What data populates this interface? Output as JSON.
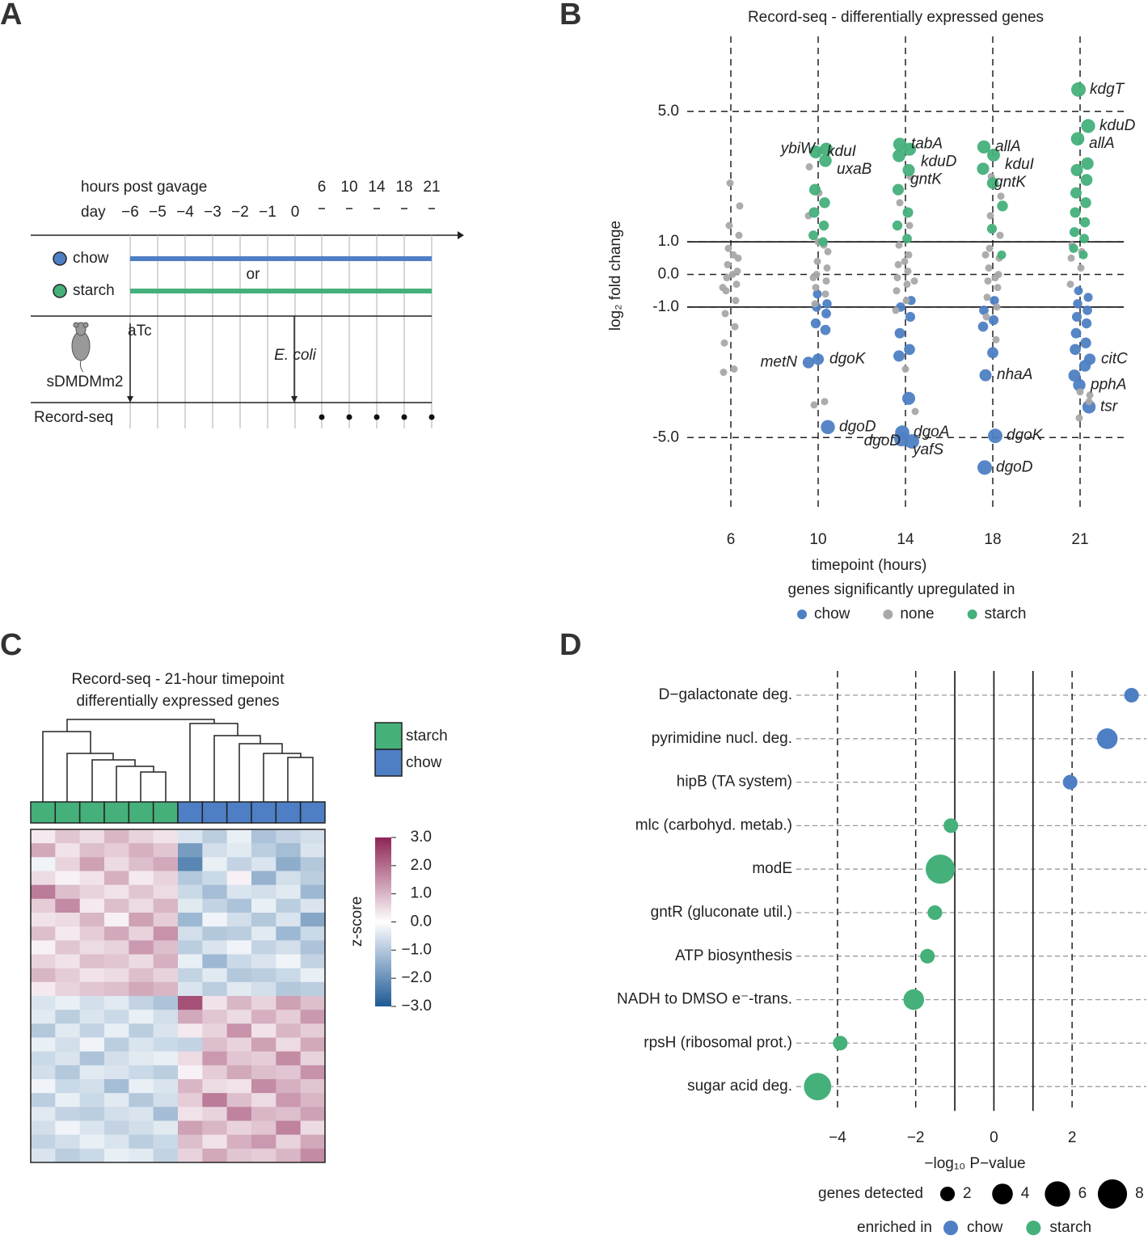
{
  "panel_labels": [
    "A",
    "B",
    "C",
    "D"
  ],
  "diagram": {
    "hours_label": "hours post gavage",
    "hours": [
      "6",
      "10",
      "14",
      "18",
      "21"
    ],
    "day_label": "day",
    "days": [
      "−6",
      "−5",
      "−4",
      "−3",
      "−2",
      "−1",
      "0"
    ],
    "diets": [
      {
        "name": "chow",
        "color": "#4e7fc4"
      },
      {
        "name": "starch",
        "color": "#45b07a"
      }
    ],
    "or": "or",
    "atc": "aTc",
    "ecoli": "E. coli",
    "mouse": "sDMDMm2",
    "readout": "Record-seq"
  },
  "chart_data": [
    {
      "type": "strip",
      "title": "Record-seq - differentially expressed genes",
      "x_label": "timepoint (hours)",
      "y_label": "log₂ fold change",
      "categories": [
        "6",
        "10",
        "14",
        "18",
        "21"
      ],
      "ylim": [
        -7.2,
        7.3
      ],
      "yticks": [
        {
          "value": 5,
          "label": "5.0"
        },
        {
          "value": 1,
          "label": "1.0"
        },
        {
          "value": 0,
          "label": "0.0"
        },
        {
          "value": -1,
          "label": "-1.0"
        },
        {
          "value": -5,
          "label": "-5.0"
        }
      ],
      "thresholds": [
        1,
        -1
      ],
      "legend_title": "genes significantly upregulated in",
      "series": [
        {
          "name": "chow",
          "color": "#4e7fc4",
          "x": [
            "10",
            "10",
            "10",
            "10",
            "10",
            "10",
            "10",
            "10",
            "10",
            "14",
            "14",
            "14",
            "14",
            "14",
            "14",
            "14",
            "14",
            "14",
            "14",
            "18",
            "18",
            "18",
            "18",
            "18",
            "18",
            "18",
            "18",
            "21",
            "21",
            "21",
            "21",
            "21",
            "21",
            "21",
            "21",
            "21",
            "21",
            "21",
            "21",
            "21",
            "21"
          ],
          "values": [
            -2.7,
            -2.6,
            -4.68,
            -0.6,
            -0.9,
            -1.0,
            -1.2,
            -1.5,
            -1.7,
            -4.85,
            -5.12,
            -5.05,
            -0.8,
            -1.0,
            -1.3,
            -1.8,
            -2.3,
            -2.5,
            -3.8,
            -3.09,
            -4.95,
            -5.92,
            -0.8,
            -1.1,
            -1.4,
            -1.6,
            -2.4,
            -2.6,
            -3.39,
            -4.06,
            -0.5,
            -0.7,
            -0.9,
            -1.1,
            -1.3,
            -1.5,
            -1.8,
            -2.1,
            -2.3,
            -2.8,
            -3.1
          ]
        },
        {
          "name": "none",
          "color": "#a8a8a8",
          "x": [
            "6",
            "6",
            "6",
            "6",
            "6",
            "6",
            "6",
            "6",
            "6",
            "6",
            "6",
            "6",
            "6",
            "6",
            "6",
            "6",
            "6",
            "6",
            "6",
            "6",
            "10",
            "10",
            "10",
            "10",
            "10",
            "10",
            "10",
            "10",
            "10",
            "10",
            "10",
            "10",
            "10",
            "10",
            "10",
            "10",
            "14",
            "14",
            "14",
            "14",
            "14",
            "14",
            "14",
            "14",
            "14",
            "14",
            "14",
            "14",
            "14",
            "14",
            "14",
            "14",
            "18",
            "18",
            "18",
            "18",
            "18",
            "18",
            "18",
            "18",
            "18",
            "18",
            "18",
            "18",
            "18",
            "18",
            "18",
            "18",
            "21",
            "21",
            "21",
            "21",
            "21",
            "21",
            "21",
            "21",
            "21"
          ],
          "values": [
            2.8,
            2.1,
            1.5,
            1.2,
            0.8,
            0.5,
            0.3,
            0.1,
            -0.1,
            -0.3,
            -0.5,
            -0.8,
            -1.2,
            -1.6,
            -2.1,
            -2.9,
            -3.0,
            0.6,
            -0.4,
            0.0,
            3.3,
            2.5,
            1.8,
            1.0,
            0.7,
            0.4,
            0.2,
            0,
            -0.2,
            -0.4,
            -0.6,
            -0.9,
            -3.9,
            -4.0,
            0.9,
            -0.1,
            3.0,
            2.2,
            1.5,
            0.9,
            0.6,
            0.3,
            0.1,
            -0.1,
            -0.3,
            -0.5,
            -0.8,
            -1.1,
            -2.9,
            -4.2,
            0.4,
            -0.2,
            3.0,
            2.4,
            1.8,
            1.2,
            0.8,
            0.5,
            0.2,
            0,
            -0.2,
            -0.4,
            -0.7,
            -1.0,
            -1.3,
            -2.0,
            0.6,
            -0.1,
            0.9,
            0.7,
            0.5,
            0.2,
            -0.3,
            -3.6,
            -3.7,
            -4.4,
            -3.9
          ]
        },
        {
          "name": "starch",
          "color": "#45b07a",
          "x": [
            "10",
            "10",
            "10",
            "10",
            "10",
            "10",
            "10",
            "10",
            "10",
            "14",
            "14",
            "14",
            "14",
            "14",
            "14",
            "14",
            "14",
            "18",
            "18",
            "18",
            "18",
            "18",
            "18",
            "18",
            "21",
            "21",
            "21",
            "21",
            "21",
            "21",
            "21",
            "21",
            "21",
            "21",
            "21",
            "21",
            "21",
            "21"
          ],
          "values": [
            3.84,
            3.76,
            3.49,
            2.6,
            2.2,
            1.9,
            1.5,
            1.2,
            1.0,
            3.99,
            3.84,
            3.64,
            3.2,
            2.6,
            1.9,
            1.5,
            1.1,
            3.91,
            3.66,
            3.24,
            2.8,
            2.1,
            1.4,
            0.6,
            5.67,
            4.55,
            4.16,
            3.4,
            3.2,
            2.9,
            2.5,
            2.2,
            1.9,
            1.6,
            1.3,
            1.1,
            0.8,
            0.6
          ]
        }
      ],
      "annotations": [
        {
          "text": "ybiW",
          "series": 2,
          "point": 0,
          "side": "left"
        },
        {
          "text": "kduI",
          "series": 2,
          "point": 1,
          "side": "right"
        },
        {
          "text": "uxaB",
          "series": 2,
          "point": 2,
          "side": "right"
        },
        {
          "text": "tabA",
          "series": 2,
          "point": 9,
          "side": "right"
        },
        {
          "text": "kduD",
          "series": 2,
          "point": 10,
          "side": "right"
        },
        {
          "text": "gntK",
          "series": 2,
          "point": 11,
          "side": "right"
        },
        {
          "text": "allA",
          "series": 2,
          "point": 17,
          "side": "right"
        },
        {
          "text": "kduI",
          "series": 2,
          "point": 18,
          "side": "right"
        },
        {
          "text": "gntK",
          "series": 2,
          "point": 19,
          "side": "right"
        },
        {
          "text": "kdgT",
          "series": 2,
          "point": 24,
          "side": "right"
        },
        {
          "text": "kduD",
          "series": 2,
          "point": 25,
          "side": "right"
        },
        {
          "text": "allA",
          "series": 2,
          "point": 26,
          "side": "right"
        },
        {
          "text": "metN",
          "series": 0,
          "point": 0,
          "side": "left"
        },
        {
          "text": "dgoK",
          "series": 0,
          "point": 1,
          "side": "right"
        },
        {
          "text": "dgoD",
          "series": 0,
          "point": 2,
          "side": "right"
        },
        {
          "text": "dgoA",
          "series": 0,
          "point": 9,
          "side": "right"
        },
        {
          "text": "dgoD",
          "series": 0,
          "point": 10,
          "side": "left"
        },
        {
          "text": "yafS",
          "series": 0,
          "point": 11,
          "side": "right"
        },
        {
          "text": "nhaA",
          "series": 0,
          "point": 19,
          "side": "right"
        },
        {
          "text": "dgoK",
          "series": 0,
          "point": 20,
          "side": "right"
        },
        {
          "text": "dgoD",
          "series": 0,
          "point": 21,
          "side": "right"
        },
        {
          "text": "citC",
          "series": 0,
          "point": 27,
          "side": "right"
        },
        {
          "text": "pphA",
          "series": 0,
          "point": 28,
          "side": "right"
        },
        {
          "text": "tsr",
          "series": 0,
          "point": 29,
          "side": "right"
        }
      ]
    },
    {
      "type": "heatmap",
      "title": [
        "Record-seq - 21-hour timepoint",
        "differentially expressed genes"
      ],
      "groups": [
        {
          "name": "starch",
          "color": "#45b07a"
        },
        {
          "name": "chow",
          "color": "#4e7fc4"
        }
      ],
      "column_groups": [
        0,
        0,
        0,
        0,
        0,
        0,
        1,
        1,
        1,
        1,
        1,
        1
      ],
      "colorbar_label": "z-score",
      "clim": [
        -3,
        3
      ],
      "colors": [
        "#1d5a96",
        "#ffffff",
        "#8e2555"
      ],
      "cticks": [
        {
          "value": 3,
          "label": "3.0"
        },
        {
          "value": 2,
          "label": "2.0"
        },
        {
          "value": 1,
          "label": "1.0"
        },
        {
          "value": 0,
          "label": "0.0"
        },
        {
          "value": -1,
          "label": "−1.0"
        },
        {
          "value": -2,
          "label": "−2.0"
        },
        {
          "value": -3,
          "label": "−3.0"
        }
      ],
      "matrix": [
        [
          0.3,
          0.8,
          0.5,
          1.0,
          0.6,
          0.4,
          -0.5,
          -0.9,
          -0.3,
          -1.1,
          -0.8,
          -0.6
        ],
        [
          1.2,
          0.4,
          0.9,
          0.7,
          1.1,
          0.8,
          -1.8,
          -0.6,
          -0.4,
          -0.9,
          -1.2,
          -0.5
        ],
        [
          -0.2,
          0.6,
          1.3,
          0.5,
          0.9,
          1.2,
          -2.2,
          -0.3,
          -0.8,
          -0.5,
          -1.5,
          -1.0
        ],
        [
          0.5,
          0.2,
          0.4,
          1.1,
          0.3,
          0.6,
          -1.0,
          -0.7,
          0.2,
          -1.4,
          -0.6,
          -0.9
        ],
        [
          1.8,
          0.9,
          0.6,
          0.4,
          0.8,
          0.5,
          -0.7,
          -1.2,
          -0.5,
          -0.6,
          -0.4,
          -1.3
        ],
        [
          0.7,
          1.6,
          0.3,
          0.9,
          0.5,
          1.0,
          -0.4,
          -0.8,
          -1.1,
          -0.3,
          -0.9,
          -0.5
        ],
        [
          0.4,
          0.5,
          1.0,
          0.2,
          1.3,
          0.7,
          -1.3,
          -0.2,
          -0.6,
          -1.0,
          -0.5,
          -1.6
        ],
        [
          0.9,
          0.3,
          0.7,
          1.2,
          0.6,
          1.5,
          -0.6,
          -1.0,
          -0.9,
          -0.4,
          -1.3,
          -0.7
        ],
        [
          0.2,
          0.8,
          0.5,
          0.6,
          1.4,
          0.9,
          -0.9,
          -0.5,
          -0.2,
          -0.8,
          -0.6,
          -1.1
        ],
        [
          0.6,
          0.4,
          0.9,
          0.8,
          0.5,
          1.1,
          -0.3,
          -1.3,
          -0.7,
          -0.5,
          -0.2,
          -0.8
        ],
        [
          1.0,
          0.7,
          0.4,
          0.5,
          0.9,
          0.6,
          -0.8,
          -0.4,
          -1.0,
          -0.9,
          -0.7,
          -0.3
        ],
        [
          0.3,
          0.6,
          0.8,
          0.9,
          1.2,
          1.0,
          -0.5,
          -0.9,
          -0.4,
          -0.6,
          -1.0,
          -0.9
        ],
        [
          -0.5,
          -0.3,
          -0.6,
          -0.4,
          -0.8,
          -1.1,
          2.4,
          0.4,
          1.0,
          0.6,
          1.3,
          0.9
        ],
        [
          -0.4,
          -0.9,
          -0.5,
          -0.7,
          -0.3,
          -0.6,
          1.2,
          0.8,
          0.5,
          1.1,
          0.7,
          1.4
        ],
        [
          -1.0,
          -0.4,
          -0.8,
          -0.3,
          -0.9,
          -0.5,
          0.3,
          0.6,
          1.5,
          0.4,
          1.0,
          0.7
        ],
        [
          -0.3,
          -0.6,
          -0.2,
          -0.9,
          -0.5,
          -0.7,
          -0.8,
          0.9,
          0.6,
          1.3,
          0.5,
          1.2
        ],
        [
          -0.7,
          -0.5,
          -1.1,
          -0.6,
          -0.4,
          -0.3,
          0.5,
          1.4,
          0.8,
          0.7,
          1.6,
          0.6
        ],
        [
          -0.6,
          -1.0,
          -0.4,
          -0.5,
          -0.7,
          -0.9,
          0.2,
          0.7,
          1.2,
          0.9,
          0.8,
          1.5
        ],
        [
          -0.2,
          -0.7,
          -0.6,
          -1.2,
          -0.3,
          -0.5,
          1.0,
          0.5,
          0.4,
          1.6,
          1.1,
          0.8
        ],
        [
          -0.9,
          -0.3,
          -0.7,
          -0.4,
          -1.0,
          -0.6,
          0.7,
          1.8,
          0.9,
          0.5,
          1.4,
          1.0
        ],
        [
          -0.4,
          -0.8,
          -0.9,
          -0.6,
          -0.5,
          -1.2,
          0.4,
          0.6,
          1.7,
          1.0,
          0.9,
          1.3
        ],
        [
          -0.6,
          -0.2,
          -0.5,
          -0.8,
          -0.6,
          -0.4,
          1.3,
          1.0,
          0.6,
          0.8,
          1.7,
          0.5
        ],
        [
          -0.8,
          -0.6,
          -0.3,
          -0.5,
          -0.9,
          -0.7,
          0.9,
          0.4,
          1.1,
          1.4,
          0.6,
          1.2
        ],
        [
          -0.5,
          -0.9,
          -0.7,
          -0.3,
          -0.4,
          -0.8,
          0.6,
          1.2,
          0.8,
          0.7,
          1.0,
          1.6
        ]
      ]
    },
    {
      "type": "bubble",
      "x_label": "−log₁₀ P−value",
      "categories": [
        "D−galactonate deg.",
        "pyrimidine nucl. deg.",
        "hipB (TA system)",
        "mlc (carbohyd. metab.)",
        "modE",
        "gntR (gluconate util.)",
        "ATP biosynthesis",
        "NADH to DMSO e⁻-trans.",
        "rpsH (ribosomal prot.)",
        "sugar acid deg."
      ],
      "xlim": [
        -4.95,
        3.9
      ],
      "xticks": [
        {
          "value": -4,
          "label": "−4"
        },
        {
          "value": -2,
          "label": "−2"
        },
        0,
        2
      ],
      "solid_lines": [
        -1,
        0,
        1
      ],
      "series": [
        {
          "name": "chow",
          "color": "#4e7fc4",
          "values": [
            3.52,
            2.9,
            1.95,
            null,
            null,
            null,
            null,
            null,
            null,
            null
          ]
        },
        {
          "name": "starch",
          "color": "#45b07a",
          "values": [
            null,
            null,
            null,
            -1.1,
            -1.37,
            -1.51,
            -1.7,
            -2.05,
            -3.93,
            -4.51
          ]
        }
      ],
      "sizes": [
        2,
        4,
        2,
        2,
        8,
        2,
        2,
        4,
        2,
        7
      ],
      "size_legend_title": "genes detected",
      "size_legend": [
        2,
        4,
        6,
        8
      ],
      "legend_title": "enriched in"
    }
  ]
}
